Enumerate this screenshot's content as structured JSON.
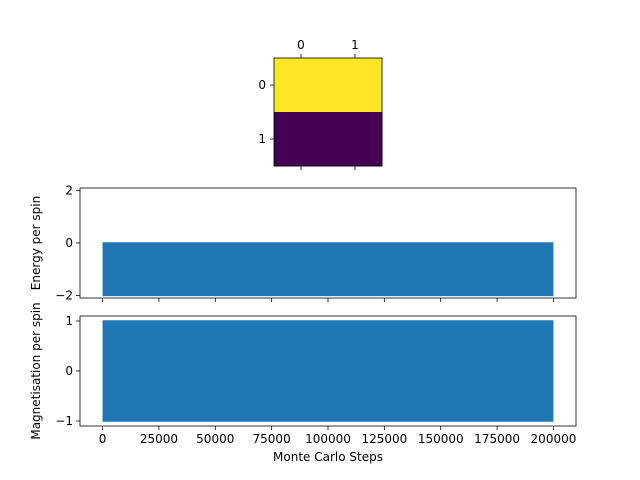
{
  "chart_data": [
    {
      "type": "heatmap",
      "title": "",
      "x_tick_labels": [
        "0",
        "1"
      ],
      "y_tick_labels": [
        "0",
        "1"
      ],
      "values": [
        [
          1,
          1
        ],
        [
          0,
          0
        ]
      ],
      "colors": {
        "high": "#fde725",
        "low": "#440154"
      }
    },
    {
      "type": "line",
      "title": "",
      "xlabel": "",
      "ylabel": "Energy per spin",
      "xlim": [
        -10000,
        210000
      ],
      "ylim": [
        -2.1,
        2.1
      ],
      "x_ticks": [
        0,
        25000,
        50000,
        75000,
        100000,
        125000,
        150000,
        175000,
        200000
      ],
      "y_ticks": [
        -2,
        0,
        2
      ],
      "y_tick_labels": [
        "−2",
        "0",
        "2"
      ],
      "series": [
        {
          "x_range": [
            0,
            200000
          ],
          "y_min": -2,
          "y_max": 0,
          "color": "#1f77b4"
        }
      ]
    },
    {
      "type": "line",
      "title": "",
      "xlabel": "Monte Carlo Steps",
      "ylabel": "Magnetisation per spin",
      "xlim": [
        -10000,
        210000
      ],
      "ylim": [
        -1.1,
        1.1
      ],
      "x_ticks": [
        0,
        25000,
        50000,
        75000,
        100000,
        125000,
        150000,
        175000,
        200000
      ],
      "x_tick_labels": [
        "0",
        "25000",
        "50000",
        "75000",
        "100000",
        "125000",
        "150000",
        "175000",
        "200000"
      ],
      "y_ticks": [
        -1,
        0,
        1
      ],
      "y_tick_labels": [
        "−1",
        "0",
        "1"
      ],
      "series": [
        {
          "x_range": [
            0,
            200000
          ],
          "y_min": -1,
          "y_max": 1,
          "color": "#1f77b4"
        }
      ]
    }
  ]
}
